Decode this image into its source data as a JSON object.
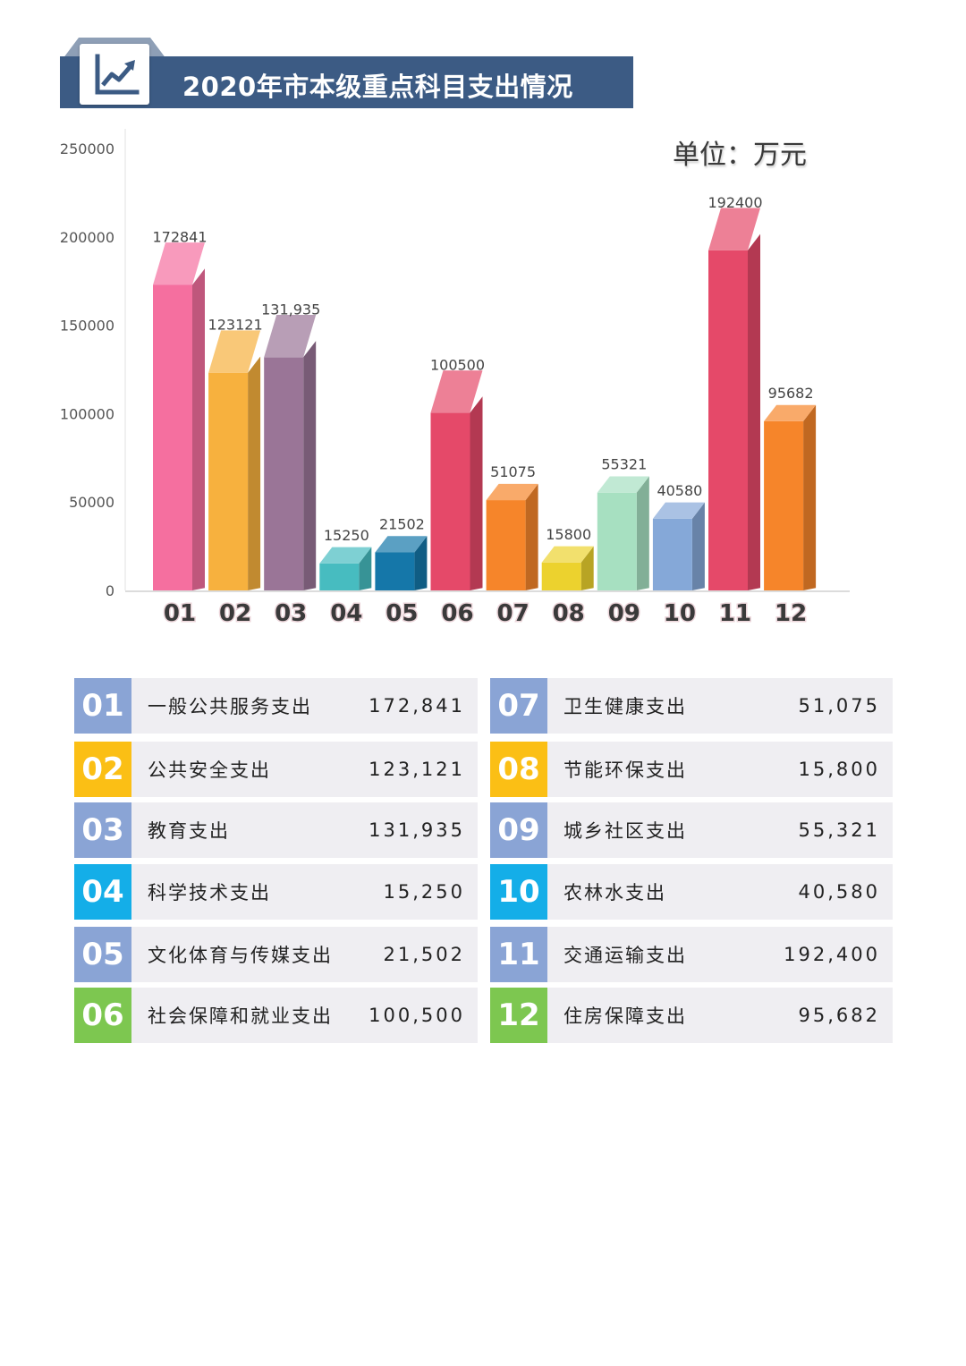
{
  "header": {
    "title": "2020年市本级重点科目支出情况",
    "icon": "line-chart-icon",
    "color": "#3c5b84"
  },
  "unit": "单位：万元",
  "chart_data": {
    "type": "bar",
    "title": "2020年市本级重点科目支出情况",
    "categories": [
      "01",
      "02",
      "03",
      "04",
      "05",
      "06",
      "07",
      "08",
      "09",
      "10",
      "11",
      "12"
    ],
    "values": [
      172841,
      123121,
      131935,
      15250,
      21502,
      100500,
      51075,
      15800,
      55321,
      40580,
      192400,
      95682
    ],
    "data_labels": [
      "172841",
      "123121",
      "131,935",
      "15250",
      "21502",
      "100500",
      "51075",
      "15800",
      "55321",
      "40580",
      "192400",
      "95682"
    ],
    "y_ticks": [
      "0",
      "50000",
      "100000",
      "150000",
      "200000",
      "250000"
    ],
    "ylim": [
      0,
      250000
    ],
    "ylabel": "",
    "xlabel": "",
    "grid": false,
    "bar_colors": [
      "#f56f9f",
      "#f7b13e",
      "#9a7597",
      "#47bcc0",
      "#1577a9",
      "#e54969",
      "#f6852a",
      "#ecd22e",
      "#a7e0c1",
      "#85a8d8",
      "#e54969",
      "#f6852a"
    ]
  },
  "legend": {
    "left": [
      {
        "num": "01",
        "name": "一般公共服务支出",
        "value": "172,841",
        "color": "#8aa4d5"
      },
      {
        "num": "02",
        "name": "公共安全支出",
        "value": "123,121",
        "color": "#fbbf15"
      },
      {
        "num": "03",
        "name": "教育支出",
        "value": "131,935",
        "color": "#8aa4d5"
      },
      {
        "num": "04",
        "name": "科学技术支出",
        "value": "15,250",
        "color": "#14aee8"
      },
      {
        "num": "05",
        "name": "文化体育与传媒支出",
        "value": "21,502",
        "color": "#8aa4d5"
      },
      {
        "num": "06",
        "name": "社会保障和就业支出",
        "value": "100,500",
        "color": "#7dc750"
      }
    ],
    "right": [
      {
        "num": "07",
        "name": "卫生健康支出",
        "value": "51,075",
        "color": "#8aa4d5"
      },
      {
        "num": "08",
        "name": "节能环保支出",
        "value": "15,800",
        "color": "#fbbf15"
      },
      {
        "num": "09",
        "name": "城乡社区支出",
        "value": "55,321",
        "color": "#8aa4d5"
      },
      {
        "num": "10",
        "name": "农林水支出",
        "value": "40,580",
        "color": "#14aee8"
      },
      {
        "num": "11",
        "name": "交通运输支出",
        "value": "192,400",
        "color": "#8aa4d5"
      },
      {
        "num": "12",
        "name": "住房保障支出",
        "value": "95,682",
        "color": "#7dc750"
      }
    ]
  }
}
